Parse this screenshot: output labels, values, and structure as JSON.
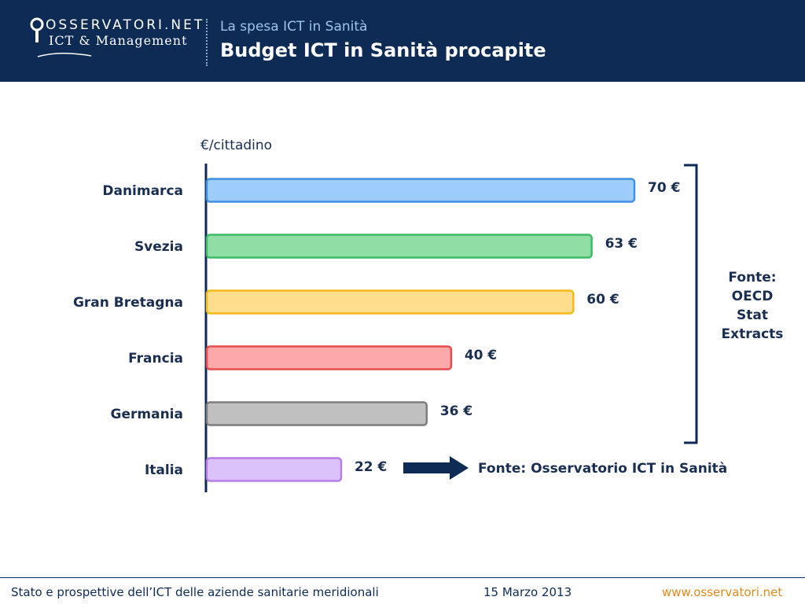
{
  "header": {
    "logo_top": "OSSERVATORI.NET",
    "logo_bottom": "ICT & Management",
    "subtitle": "La spesa ICT in Sanità",
    "title": "Budget ICT in Sanità procapite"
  },
  "chart_data": {
    "type": "bar",
    "orientation": "horizontal",
    "unit_label": "€/cittadino",
    "categories": [
      "Danimarca",
      "Svezia",
      "Gran Bretagna",
      "Francia",
      "Germania",
      "Italia"
    ],
    "values": [
      70,
      63,
      60,
      40,
      36,
      22
    ],
    "value_labels": [
      "70 €",
      "63 €",
      "60 €",
      "40 €",
      "36 €",
      "22 €"
    ],
    "colors": [
      "#9fcdfb",
      "#90dea6",
      "#fedd8d",
      "#fda9a9",
      "#c0c0c0",
      "#dcc2fb"
    ],
    "border_colors": [
      "#3f8fe2",
      "#3eb964",
      "#f0bb18",
      "#e84c4c",
      "#7d7d7d",
      "#b57ee6"
    ],
    "annotations": {
      "bracket_text": "Fonte:\nOECD\nStat\nExtracts",
      "arrow_text": "Fonte: Osservatorio ICT in Sanità"
    },
    "grid": false
  },
  "footer": {
    "left": "Stato e prospettive dell’ICT delle aziende sanitarie meridionali",
    "date": "15 Marzo 2013",
    "url": "www.osservatori.net"
  },
  "colors": {
    "header_bg": "#0d2b55",
    "text": "#1a2e52",
    "accent": "#e08a1e"
  }
}
